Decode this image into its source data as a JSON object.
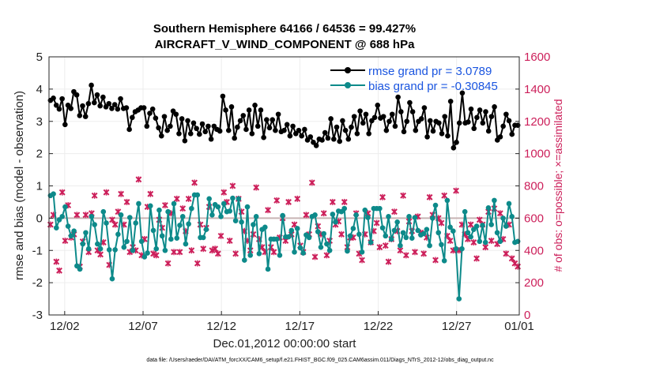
{
  "chart_data": {
    "type": "line",
    "title": "Southern Hemisphere 64166 / 64536 = 99.427%",
    "subtitle": "AIRCRAFT_V_WIND_COMPONENT @ 688 hPa",
    "xlabel": "Dec.01,2012 00:00:00 start",
    "ylabel": "rmse and bias (model - observation)",
    "ylabel_right": "# of obs: o=possible; ×=assimilated",
    "footer": "data file: /Users/raeder/DAI/ATM_forcXX/CAM6_setup/f.e21.FHIST_BGC.f09_025.CAM6assim.011/Diags_NTrS_2012-12/obs_diag_output.nc",
    "xlim": [
      0,
      30
    ],
    "ylim": [
      -3,
      5
    ],
    "ylim_right": [
      0,
      1600
    ],
    "x_ticks": [
      1,
      6,
      11,
      16,
      21,
      26,
      30
    ],
    "x_tick_labels": [
      "12/02",
      "12/07",
      "12/12",
      "12/17",
      "12/22",
      "12/27",
      "01/01"
    ],
    "y_ticks": [
      -3,
      -2,
      -1,
      0,
      1,
      2,
      3,
      4,
      5
    ],
    "y_ticks_right": [
      0,
      200,
      400,
      600,
      800,
      1000,
      1200,
      1400,
      1600
    ],
    "grid": true,
    "legend_position": "top-right",
    "zero_line": 0,
    "series": [
      {
        "name": "rmse grand pr = 3.0789",
        "axis": "left",
        "color": "#000000",
        "values": [
          3.65,
          3.72,
          3.5,
          3.38,
          3.7,
          2.9,
          3.5,
          3.4,
          3.92,
          3.82,
          3.18,
          3.48,
          3.15,
          3.55,
          4.12,
          3.58,
          3.82,
          3.48,
          3.75,
          3.45,
          3.55,
          3.4,
          3.52,
          3.38,
          3.7,
          3.4,
          3.42,
          2.75,
          3.12,
          3.3,
          3.35,
          3.42,
          3.42,
          2.85,
          3.25,
          3.38,
          3.1,
          2.8,
          2.55,
          3.15,
          2.72,
          2.85,
          3.32,
          3.22,
          2.62,
          3.08,
          2.4,
          3.02,
          2.62,
          2.95,
          2.78,
          2.6,
          2.92,
          2.68,
          2.85,
          2.45,
          2.85,
          2.75,
          2.7,
          3.78,
          3.35,
          2.72,
          3.45,
          2.48,
          2.82,
          3.02,
          3.18,
          2.75,
          3.35,
          2.62,
          3.5,
          2.85,
          3.35,
          2.5,
          3.05,
          2.8,
          3.05,
          2.72,
          3.22,
          2.68,
          2.72,
          2.9,
          2.55,
          2.85,
          2.62,
          2.72,
          2.55,
          2.75,
          2.42,
          2.52,
          2.35,
          2.25,
          2.45,
          2.42,
          2.65,
          2.48,
          3.08,
          2.45,
          2.82,
          2.38,
          3.02,
          2.72,
          2.45,
          2.82,
          3.15,
          2.62,
          3.32,
          2.95,
          3.22,
          2.62,
          3.02,
          3.12,
          3.5,
          3.1,
          3.15,
          2.72,
          3.0,
          3.22,
          2.85,
          3.75,
          3.3,
          2.68,
          3.0,
          3.58,
          3.3,
          2.72,
          3.0,
          3.08,
          3.42,
          2.52,
          3.02,
          2.7,
          3.0,
          2.95,
          2.62,
          3.15,
          2.55,
          3.62,
          2.18,
          2.35,
          2.95,
          3.88,
          2.95,
          2.98,
          3.38,
          2.78,
          3.12,
          3.35,
          2.95,
          3.3,
          2.7,
          3.15,
          3.45,
          2.42,
          2.52,
          2.85,
          3.22,
          3.02,
          2.6,
          2.88,
          2.88
        ]
      },
      {
        "name": "bias grand pr = -0.30845",
        "axis": "left",
        "color": "#0d8a8a",
        "values": [
          0.7,
          0.75,
          -0.3,
          -0.05,
          0.05,
          0.35,
          -0.25,
          -0.55,
          -0.4,
          -1.48,
          -1.58,
          -0.8,
          -0.45,
          -0.95,
          0.05,
          -0.2,
          -0.8,
          -0.95,
          0.2,
          -0.15,
          -0.98,
          -1.88,
          -0.98,
          -0.5,
          0.1,
          -0.9,
          -0.72,
          0.02,
          -1.0,
          -0.15,
          0.45,
          -0.72,
          -1.2,
          -1.08,
          0.38,
          -0.38,
          -0.95,
          0.25,
          -0.55,
          -1.0,
          0.2,
          -0.65,
          0.45,
          -0.62,
          -0.22,
          0.05,
          -0.8,
          -0.18,
          0.3,
          0.72,
          0.72,
          -0.6,
          -0.6,
          -0.35,
          0.6,
          0.1,
          0.42,
          0.35,
          0.05,
          0.45,
          0.2,
          0.22,
          0.62,
          -0.08,
          0.6,
          -0.12,
          -1.3,
          0.35,
          -1.15,
          -0.2,
          0.05,
          -1.1,
          -0.35,
          -0.28,
          -1.58,
          -0.65,
          -0.65,
          -0.65,
          -1.15,
          0.08,
          -0.58,
          -0.58,
          -0.38,
          -1.05,
          -0.32,
          -0.92,
          -1.08,
          -0.52,
          -0.6,
          0.05,
          0.1,
          -0.42,
          -0.9,
          -0.48,
          -0.8,
          -1.0,
          0.12,
          -0.12,
          0.22,
          0.2,
          0.3,
          -1.02,
          -0.55,
          -0.32,
          0.1,
          -0.5,
          -1.05,
          0.25,
          0.02,
          -0.75,
          0.3,
          0.3,
          0.3,
          -0.3,
          -0.55,
          0.05,
          -0.65,
          -0.38,
          -0.12,
          -0.85,
          -0.45,
          -0.6,
          0.05,
          -0.62,
          0.02,
          -0.38,
          -0.52,
          -0.48,
          -0.35,
          -0.85,
          0.0,
          0.4,
          -0.45,
          -0.82,
          -1.32,
          0.55,
          -0.28,
          -0.4,
          -0.95,
          -2.5,
          -0.95,
          0.2,
          -0.45,
          -0.58,
          -0.35,
          -0.25,
          -0.72,
          -0.22,
          -0.75,
          0.32,
          -0.2,
          0.55,
          -0.45,
          -0.72,
          0.0,
          -0.25,
          0.45,
          0.05,
          -0.75,
          -0.72
        ]
      },
      {
        "name": "# of obs possible",
        "axis": "right",
        "color": "#cc1f5a",
        "values": [
          560,
          620,
          330,
          275,
          760,
          460,
          680,
          480,
          500,
          620,
          300,
          455,
          620,
          390,
          630,
          740,
          400,
          375,
          450,
          760,
          310,
          590,
          560,
          640,
          750,
          560,
          700,
          390,
          420,
          400,
          840,
          370,
          470,
          670,
          750,
          380,
          370,
          590,
          540,
          680,
          320,
          630,
          390,
          720,
          390,
          660,
          520,
          720,
          400,
          820,
          320,
          560,
          410,
          540,
          670,
          400,
          410,
          380,
          490,
          760,
          700,
          460,
          800,
          380,
          720,
          640,
          520,
          460,
          400,
          500,
          790,
          470,
          420,
          390,
          650,
          420,
          390,
          710,
          480,
          600,
          460,
          700,
          500,
          560,
          720,
          430,
          390,
          620,
          500,
          820,
          360,
          550,
          500,
          630,
          370,
          460,
          700,
          560,
          580,
          500,
          700,
          420,
          480,
          480,
          630,
          380,
          340,
          500,
          630,
          450,
          520,
          570,
          420,
          730,
          430,
          330,
          470,
          640,
          520,
          400,
          740,
          370,
          580,
          520,
          390,
          610,
          510,
          380,
          480,
          730,
          620,
          340,
          600,
          570,
          740,
          490,
          460,
          400,
          770,
          400,
          560,
          500,
          470,
          560,
          450,
          350,
          590,
          560,
          420,
          640,
          460,
          660,
          440,
          630,
          470,
          380,
          560,
          350,
          320,
          300
        ]
      }
    ]
  }
}
